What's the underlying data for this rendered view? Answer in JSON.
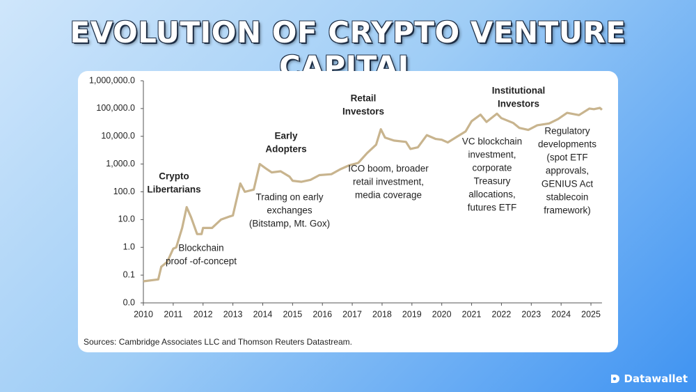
{
  "chart_data": {
    "type": "line",
    "title": "EVOLUTION OF CRYPTO VENTURE CAPITAL",
    "source": "Sources: Cambridge Associates LLC and Thomson Reuters Datastream.",
    "log_scale": true,
    "xlim": [
      2010,
      2025.37
    ],
    "xticks": [
      2010,
      2011,
      2012,
      2013,
      2014,
      2015,
      2016,
      2017,
      2018,
      2019,
      2020,
      2021,
      2022,
      2023,
      2024,
      2025
    ],
    "ylim": [
      0.01,
      1000000
    ],
    "yticks": [
      {
        "value": 0.01,
        "label": "0.0"
      },
      0.1,
      {
        "value": 1,
        "label": "1.0"
      },
      {
        "value": 10,
        "label": "10.0"
      },
      {
        "value": 100,
        "label": "100.0"
      },
      {
        "value": 1000,
        "label": "1,000.0"
      },
      {
        "value": 10000,
        "label": "10,000.0"
      },
      {
        "value": 100000,
        "label": "100,000.0"
      },
      {
        "value": 1000000,
        "label": "1,000,000.0"
      }
    ],
    "x": [
      2010.0,
      2010.5,
      2010.6,
      2010.8,
      2011.0,
      2011.1,
      2011.3,
      2011.45,
      2011.6,
      2011.8,
      2011.95,
      2012.0,
      2012.3,
      2012.6,
      2012.9,
      2013.0,
      2013.25,
      2013.4,
      2013.7,
      2013.9,
      2014.1,
      2014.3,
      2014.6,
      2014.9,
      2015.0,
      2015.3,
      2015.6,
      2015.9,
      2016.3,
      2016.6,
      2016.9,
      2017.2,
      2017.5,
      2017.8,
      2017.96,
      2018.1,
      2018.4,
      2018.8,
      2018.95,
      2019.2,
      2019.5,
      2019.8,
      2020.0,
      2020.2,
      2020.5,
      2020.8,
      2021.0,
      2021.3,
      2021.5,
      2021.85,
      2022.0,
      2022.4,
      2022.6,
      2022.9,
      2023.2,
      2023.6,
      2023.9,
      2024.2,
      2024.6,
      2024.95,
      2025.1,
      2025.3,
      2025.37
    ],
    "series": [
      {
        "color": "#c8b48e",
        "values": [
          0.06,
          0.07,
          0.2,
          0.3,
          0.9,
          1.0,
          5,
          28,
          12,
          3,
          3,
          5,
          5,
          10,
          13,
          14,
          200,
          100,
          120,
          1000,
          700,
          500,
          550,
          350,
          250,
          230,
          270,
          400,
          430,
          650,
          900,
          1100,
          2500,
          5000,
          18000,
          9000,
          7000,
          6300,
          3500,
          4000,
          11000,
          8000,
          7500,
          6000,
          9500,
          15000,
          35000,
          60000,
          33000,
          65000,
          45000,
          30000,
          20000,
          17000,
          25000,
          29000,
          42000,
          70000,
          58000,
          100000,
          95000,
          105000,
          90000
        ]
      }
    ],
    "annotations": [
      {
        "lines": [
          "Crypto",
          "Libertarians"
        ],
        "bold": true
      },
      {
        "lines": [
          "Blockchain",
          "proof -of-concept"
        ],
        "bold": false
      },
      {
        "lines": [
          "Early",
          "Adopters"
        ],
        "bold": true
      },
      {
        "lines": [
          "Trading on early",
          "exchanges",
          "(Bitstamp, Mt. Gox)"
        ],
        "bold": false
      },
      {
        "lines": [
          "Retail",
          "Investors"
        ],
        "bold": true
      },
      {
        "lines": [
          "ICO boom, broader",
          "retail investment,",
          "media coverage"
        ],
        "bold": false
      },
      {
        "lines": [
          "Institutional",
          "Investors"
        ],
        "bold": true
      },
      {
        "lines": [
          "VC blockchain",
          "investment,",
          "corporate",
          "Treasury",
          "allocations,",
          "futures ETF"
        ],
        "bold": false
      },
      {
        "lines": [
          "Regulatory",
          "developments",
          "(spot ETF",
          "approvals,",
          "GENIUS Act",
          "stablecoin",
          "framework)"
        ],
        "bold": false
      }
    ]
  },
  "brand": "Datawallet"
}
